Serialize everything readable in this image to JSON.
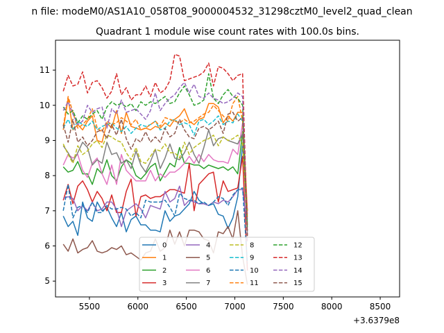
{
  "chart_data": {
    "type": "line",
    "suptitle": "n file: modeM0/AS1A10_058T08_9000004532_31298cztM0_level2_quad_clean",
    "title": "Quadrant 1 module wise count rates with 100.0s bins.",
    "xlabel": "",
    "ylabel": "",
    "offset_label": "+3.6379e8",
    "xlim": [
      5150,
      8700
    ],
    "ylim": [
      4.55,
      11.85
    ],
    "xticks": [
      5500,
      6000,
      6500,
      7000,
      7500,
      8000,
      8500
    ],
    "yticks": [
      5,
      6,
      7,
      8,
      9,
      10,
      11
    ],
    "grid": false,
    "legend": {
      "placement": "lower-center",
      "ncol": 4
    },
    "x_start": 5230,
    "x_step": 50,
    "series": [
      {
        "name": "0",
        "color": "#1f77b4",
        "dash": "solid",
        "values": [
          6.85,
          6.55,
          6.7,
          6.3,
          7.25,
          6.8,
          6.7,
          7.25,
          7.0,
          7.1,
          6.8,
          6.55,
          6.95,
          6.4,
          6.75,
          6.85,
          6.6,
          6.6,
          6.45,
          6.45,
          6.4,
          7.0,
          6.7,
          6.85,
          6.9,
          7.05,
          7.2,
          7.55,
          7.3,
          7.2,
          7.15,
          7.2,
          6.9,
          6.85,
          6.5,
          6.8,
          7.4,
          8.9,
          7.0
        ]
      },
      {
        "name": "1",
        "color": "#ff7f0e",
        "dash": "solid",
        "values": [
          9.3,
          10.2,
          9.3,
          9.45,
          9.3,
          9.55,
          9.7,
          9.0,
          8.95,
          9.5,
          9.35,
          9.85,
          9.2,
          9.8,
          9.4,
          9.35,
          9.3,
          9.35,
          9.3,
          9.4,
          9.35,
          9.5,
          9.4,
          9.6,
          9.7,
          9.9,
          9.55,
          9.45,
          9.6,
          9.65,
          10.05,
          10.05,
          9.95,
          9.5,
          9.7,
          9.55,
          9.8,
          9.8,
          7.0
        ]
      },
      {
        "name": "2",
        "color": "#2ca02c",
        "dash": "solid",
        "values": [
          8.25,
          8.1,
          8.15,
          8.4,
          8.05,
          8.05,
          7.75,
          8.2,
          8.05,
          8.45,
          8.0,
          7.85,
          8.25,
          8.45,
          8.35,
          8.0,
          7.9,
          8.05,
          8.25,
          8.35,
          7.85,
          8.1,
          8.35,
          8.25,
          8.8,
          8.35,
          8.35,
          8.3,
          8.3,
          8.2,
          8.3,
          8.25,
          8.2,
          8.25,
          8.15,
          8.25,
          8.05,
          9.25,
          6.6
        ]
      },
      {
        "name": "3",
        "color": "#d62728",
        "dash": "solid",
        "values": [
          7.3,
          7.75,
          7.2,
          7.7,
          7.85,
          7.6,
          7.25,
          7.55,
          7.35,
          7.0,
          7.45,
          6.95,
          6.95,
          7.55,
          7.9,
          6.85,
          7.4,
          7.45,
          7.35,
          7.4,
          7.4,
          7.5,
          7.6,
          7.6,
          7.55,
          7.5,
          8.35,
          7.0,
          7.75,
          7.9,
          8.05,
          8.1,
          7.25,
          7.85,
          7.55,
          7.6,
          7.65,
          8.55,
          5.3
        ]
      },
      {
        "name": "4",
        "color": "#9467bd",
        "dash": "solid",
        "values": [
          7.35,
          7.4,
          7.35,
          7.0,
          7.15,
          7.0,
          7.25,
          7.0,
          7.05,
          7.25,
          7.25,
          7.05,
          6.55,
          7.0,
          7.1,
          7.2,
          7.05,
          6.8,
          7.15,
          7.1,
          7.05,
          7.55,
          7.25,
          7.35,
          7.7,
          7.15,
          7.3,
          7.25,
          7.2,
          7.2,
          7.15,
          7.25,
          7.2,
          7.3,
          7.25,
          7.4,
          7.6,
          7.6,
          6.55
        ]
      },
      {
        "name": "5",
        "color": "#8c564b",
        "dash": "solid",
        "values": [
          6.05,
          5.85,
          6.2,
          5.8,
          5.9,
          5.95,
          6.15,
          5.85,
          5.8,
          5.85,
          5.95,
          5.9,
          6.0,
          5.75,
          5.8,
          5.7,
          5.6,
          5.8,
          5.85,
          6.2,
          5.85,
          5.95,
          6.45,
          6.05,
          6.4,
          6.0,
          6.45,
          6.45,
          6.4,
          6.2,
          6.15,
          5.8,
          6.4,
          6.35,
          6.55,
          6.2,
          7.0,
          5.7,
          4.9
        ]
      },
      {
        "name": "6",
        "color": "#e377c2",
        "dash": "solid",
        "values": [
          8.3,
          8.6,
          8.5,
          8.6,
          8.15,
          7.95,
          8.35,
          8.5,
          8.05,
          7.75,
          8.3,
          7.75,
          8.6,
          8.15,
          8.0,
          7.85,
          7.85,
          7.85,
          8.15,
          7.85,
          8.05,
          7.95,
          8.1,
          8.1,
          8.2,
          8.35,
          8.55,
          8.35,
          8.6,
          8.4,
          8.6,
          8.45,
          8.4,
          8.4,
          8.35,
          8.75,
          8.6,
          9.5,
          6.9
        ]
      },
      {
        "name": "7",
        "color": "#7f7f7f",
        "dash": "solid",
        "values": [
          8.85,
          8.65,
          8.4,
          8.65,
          8.95,
          8.8,
          8.3,
          8.45,
          8.35,
          8.95,
          8.6,
          8.65,
          8.35,
          8.45,
          8.2,
          8.7,
          8.3,
          8.1,
          8.4,
          8.75,
          8.2,
          8.5,
          8.9,
          8.5,
          8.45,
          8.65,
          8.95,
          8.6,
          8.35,
          8.8,
          9.3,
          8.85,
          9.05,
          9.1,
          9.0,
          8.95,
          8.9,
          9.2,
          6.4
        ]
      },
      {
        "name": "8",
        "color": "#bcbd22",
        "dash": "dash",
        "values": [
          8.9,
          8.6,
          8.35,
          8.85,
          8.6,
          8.7,
          8.9,
          9.0,
          8.8,
          9.15,
          9.1,
          9.0,
          8.95,
          8.65,
          8.45,
          8.8,
          8.4,
          8.35,
          8.55,
          8.75,
          8.7,
          8.9,
          8.65,
          8.65,
          8.5,
          8.95,
          8.6,
          8.8,
          8.9,
          9.0,
          9.05,
          9.15,
          8.85,
          9.1,
          9.0,
          9.05,
          9.15,
          8.9,
          6.6
        ]
      },
      {
        "name": "9",
        "color": "#17becf",
        "dash": "dash",
        "values": [
          9.35,
          9.6,
          9.3,
          9.55,
          9.45,
          9.4,
          9.55,
          9.3,
          9.4,
          9.45,
          9.5,
          9.35,
          9.25,
          9.4,
          9.2,
          9.35,
          9.45,
          9.4,
          9.45,
          9.55,
          9.3,
          9.35,
          9.55,
          9.6,
          9.45,
          9.5,
          9.45,
          9.15,
          9.55,
          9.6,
          9.45,
          9.55,
          9.7,
          9.45,
          9.55,
          9.5,
          9.75,
          9.55,
          6.7
        ]
      },
      {
        "name": "10",
        "color": "#1f77b4",
        "dash": "dash",
        "values": [
          7.0,
          7.75,
          6.8,
          7.1,
          7.15,
          6.95,
          7.25,
          6.95,
          6.95,
          7.15,
          7.05,
          7.05,
          7.1,
          7.05,
          6.85,
          6.95,
          6.8,
          7.3,
          7.25,
          7.25,
          7.25,
          7.3,
          7.1,
          6.85,
          7.5,
          7.35,
          7.3,
          7.3,
          7.2,
          7.25,
          7.15,
          7.25,
          7.4,
          7.35,
          7.15,
          7.45,
          7.6,
          7.65,
          5.5
        ]
      },
      {
        "name": "11",
        "color": "#ff7f0e",
        "dash": "dash",
        "values": [
          9.4,
          10.25,
          9.8,
          9.35,
          9.45,
          9.6,
          9.9,
          9.35,
          9.25,
          9.55,
          9.45,
          9.5,
          9.65,
          9.55,
          9.45,
          9.6,
          9.3,
          9.35,
          9.45,
          9.55,
          9.4,
          9.65,
          9.6,
          9.55,
          9.5,
          9.6,
          9.5,
          9.55,
          9.65,
          9.75,
          9.8,
          10.0,
          9.85,
          9.7,
          9.55,
          10.05,
          10.25,
          9.55,
          6.8
        ]
      },
      {
        "name": "12",
        "color": "#2ca02c",
        "dash": "dash",
        "values": [
          9.95,
          9.75,
          9.85,
          9.5,
          9.7,
          9.6,
          9.75,
          9.85,
          9.6,
          9.95,
          10.1,
          10.0,
          10.05,
          9.95,
          10.05,
          9.85,
          10.1,
          10.0,
          10.1,
          10.05,
          10.15,
          10.25,
          10.05,
          10.1,
          10.35,
          10.55,
          10.3,
          10.0,
          10.05,
          10.15,
          10.9,
          10.2,
          10.05,
          10.3,
          10.45,
          10.25,
          10.2,
          10.0,
          6.45
        ]
      },
      {
        "name": "13",
        "color": "#d62728",
        "dash": "dash",
        "values": [
          10.4,
          10.85,
          10.55,
          10.6,
          10.95,
          10.35,
          10.65,
          10.7,
          10.5,
          10.2,
          10.4,
          10.9,
          10.3,
          10.5,
          10.15,
          10.3,
          10.3,
          10.55,
          10.25,
          10.65,
          10.35,
          10.45,
          10.7,
          11.45,
          11.4,
          10.7,
          10.75,
          10.8,
          10.85,
          10.95,
          11.2,
          10.55,
          11.1,
          11.05,
          10.9,
          10.7,
          10.85,
          10.9,
          6.3
        ]
      },
      {
        "name": "14",
        "color": "#9467bd",
        "dash": "dash",
        "values": [
          9.85,
          10.1,
          9.75,
          9.45,
          9.55,
          10.0,
          9.8,
          9.9,
          9.95,
          9.35,
          9.9,
          9.75,
          10.15,
          9.8,
          9.85,
          9.9,
          9.75,
          9.6,
          9.85,
          10.35,
          9.85,
          10.05,
          10.2,
          10.3,
          10.5,
          10.65,
          10.35,
          10.6,
          10.25,
          10.2,
          10.35,
          10.2,
          10.15,
          10.05,
          10.1,
          10.2,
          10.35,
          10.25,
          6.1
        ]
      },
      {
        "name": "15",
        "color": "#8c564b",
        "dash": "dash",
        "values": [
          9.45,
          8.95,
          9.6,
          8.95,
          9.1,
          8.85,
          9.0,
          9.25,
          9.3,
          9.05,
          9.45,
          9.15,
          9.6,
          9.05,
          8.75,
          9.05,
          8.95,
          9.25,
          8.95,
          9.1,
          8.95,
          9.35,
          9.1,
          9.2,
          9.6,
          9.3,
          9.1,
          9.05,
          9.35,
          9.4,
          9.3,
          9.4,
          9.55,
          9.2,
          9.75,
          9.8,
          9.55,
          9.65,
          6.25
        ]
      }
    ]
  }
}
